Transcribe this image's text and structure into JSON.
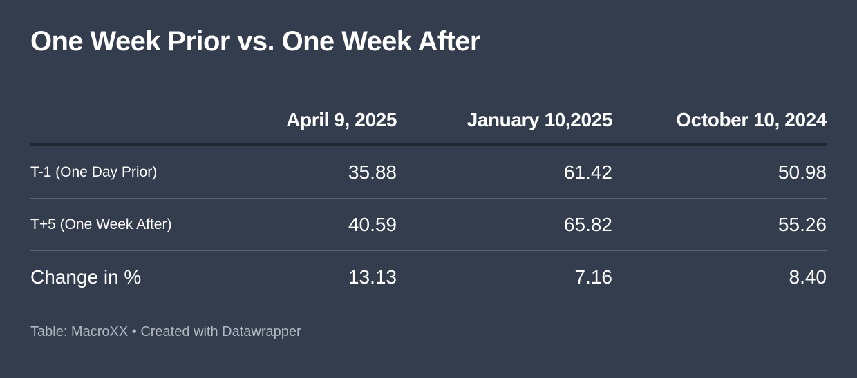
{
  "chart_data": {
    "type": "table",
    "title": "One Week Prior vs. One Week After",
    "columns": [
      "",
      "April 9, 2025",
      "January 10,2025",
      "October 10, 2024"
    ],
    "rows": [
      {
        "label": "T-1 (One Day Prior)",
        "values": [
          "35.88",
          "61.42",
          "50.98"
        ]
      },
      {
        "label": "T+5 (One Week After)",
        "values": [
          "40.59",
          "65.82",
          "55.26"
        ]
      },
      {
        "label": "Change in %",
        "values": [
          "13.13",
          "7.16",
          "8.40"
        ]
      }
    ],
    "footer": {
      "source": "Table: MacroXX",
      "separator": "•",
      "credit": "Created with Datawrapper"
    }
  },
  "colors": {
    "background": "#333d4d",
    "text": "#ffffff",
    "footer_text": "#b2b8c1",
    "header_rule": "#202731",
    "row_rule": "#5b6574"
  }
}
